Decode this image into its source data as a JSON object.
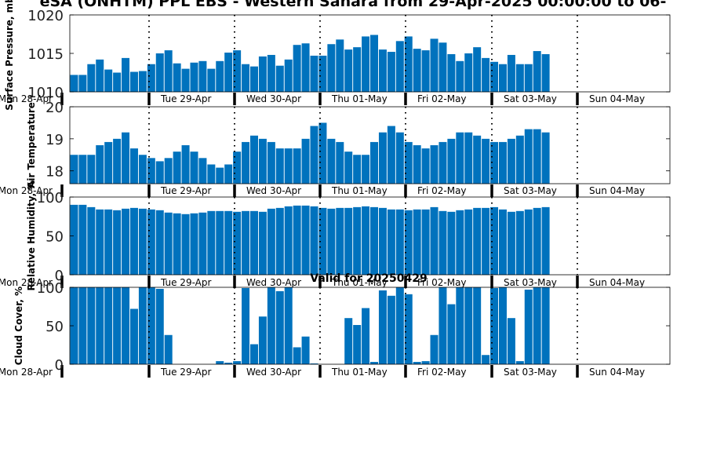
{
  "figure": {
    "title": "eSA (ONHTM) PPL EBS  - Western Sahara from 29-Apr-2025 00:00:00 to 06-",
    "subtitle": "Valid for 20250429"
  },
  "colors": {
    "bar": "#0072bd",
    "axis": "#000000"
  },
  "chart_data": [
    {
      "type": "bar",
      "ylabel": "Surface Pressure, mb",
      "ylim": [
        1010,
        1020
      ],
      "yticks": [
        1010,
        1015,
        1020
      ],
      "day_labels": [
        "Mon 28-Apr",
        "Tue 29-Apr",
        "Wed 30-Apr",
        "Thu 01-May",
        "Fri 02-May",
        "Sat 03-May",
        "Sun 04-May"
      ],
      "values": [
        1012.2,
        1012.2,
        1013.6,
        1014.2,
        1012.9,
        1012.5,
        1014.4,
        1012.6,
        1012.7,
        1013.6,
        1015.0,
        1015.4,
        1013.7,
        1013.0,
        1013.8,
        1014.0,
        1013.0,
        1014.0,
        1015.1,
        1015.4,
        1013.6,
        1013.3,
        1014.6,
        1014.8,
        1013.4,
        1014.2,
        1016.1,
        1016.3,
        1014.7,
        1014.7,
        1016.2,
        1016.8,
        1015.5,
        1015.8,
        1017.2,
        1017.4,
        1015.5,
        1015.2,
        1016.6,
        1017.2,
        1015.6,
        1015.4,
        1016.9,
        1016.4,
        1014.9,
        1014.0,
        1015.0,
        1015.8,
        1014.4,
        1013.9,
        1013.6,
        1014.8,
        1013.6,
        1013.6,
        1015.3,
        1014.9
      ]
    },
    {
      "type": "bar",
      "ylabel": "Air Temperature",
      "ylim": [
        17.6,
        20
      ],
      "yticks": [
        18,
        19,
        20
      ],
      "day_labels": [
        "Mon 28-Apr",
        "Tue 29-Apr",
        "Wed 30-Apr",
        "Thu 01-May",
        "Fri 02-May",
        "Sat 03-May",
        "Sun 04-May"
      ],
      "values": [
        18.5,
        18.5,
        18.5,
        18.8,
        18.9,
        19.0,
        19.2,
        18.7,
        18.5,
        18.4,
        18.3,
        18.4,
        18.6,
        18.8,
        18.6,
        18.4,
        18.2,
        18.1,
        18.2,
        18.6,
        18.9,
        19.1,
        19.0,
        18.9,
        18.7,
        18.7,
        18.7,
        19.0,
        19.4,
        19.5,
        19.0,
        18.9,
        18.6,
        18.5,
        18.5,
        18.9,
        19.2,
        19.4,
        19.2,
        18.9,
        18.8,
        18.7,
        18.8,
        18.9,
        19.0,
        19.2,
        19.2,
        19.1,
        19.0,
        18.9,
        18.9,
        19.0,
        19.1,
        19.3,
        19.3,
        19.2
      ]
    },
    {
      "type": "bar",
      "ylabel": "Relative Humidity, %",
      "ylim": [
        0,
        100
      ],
      "yticks": [
        0,
        50,
        100
      ],
      "day_labels": [
        "Mon 28-Apr",
        "Tue 29-Apr",
        "Wed 30-Apr",
        "Thu 01-May",
        "Fri 02-May",
        "Sat 03-May",
        "Sun 04-May"
      ],
      "values": [
        90,
        90,
        87,
        84,
        84,
        83,
        85,
        86,
        85,
        84,
        83,
        80,
        79,
        78,
        79,
        80,
        82,
        82,
        82,
        81,
        82,
        82,
        81,
        85,
        86,
        88,
        89,
        89,
        88,
        86,
        85,
        86,
        86,
        87,
        88,
        87,
        86,
        84,
        84,
        83,
        84,
        84,
        87,
        82,
        81,
        83,
        84,
        86,
        86,
        87,
        84,
        81,
        82,
        84,
        86,
        87
      ]
    },
    {
      "type": "bar",
      "ylabel": "Cloud Cover, %",
      "ylim": [
        0,
        100
      ],
      "yticks": [
        0,
        50,
        100
      ],
      "day_labels": [
        "Mon 28-Apr",
        "Tue 29-Apr",
        "Wed 30-Apr",
        "Thu 01-May",
        "Fri 02-May",
        "Sat 03-May",
        "Sun 04-May"
      ],
      "values": [
        100,
        100,
        100,
        100,
        100,
        100,
        100,
        72,
        100,
        100,
        98,
        38,
        0,
        0,
        0,
        0,
        0,
        4,
        2,
        4,
        99,
        26,
        62,
        100,
        95,
        100,
        22,
        36,
        1,
        0,
        0,
        0,
        60,
        51,
        73,
        3,
        96,
        89,
        100,
        91,
        3,
        4,
        38,
        100,
        78,
        100,
        100,
        100,
        12,
        99,
        100,
        60,
        4,
        97,
        100,
        100
      ]
    }
  ]
}
